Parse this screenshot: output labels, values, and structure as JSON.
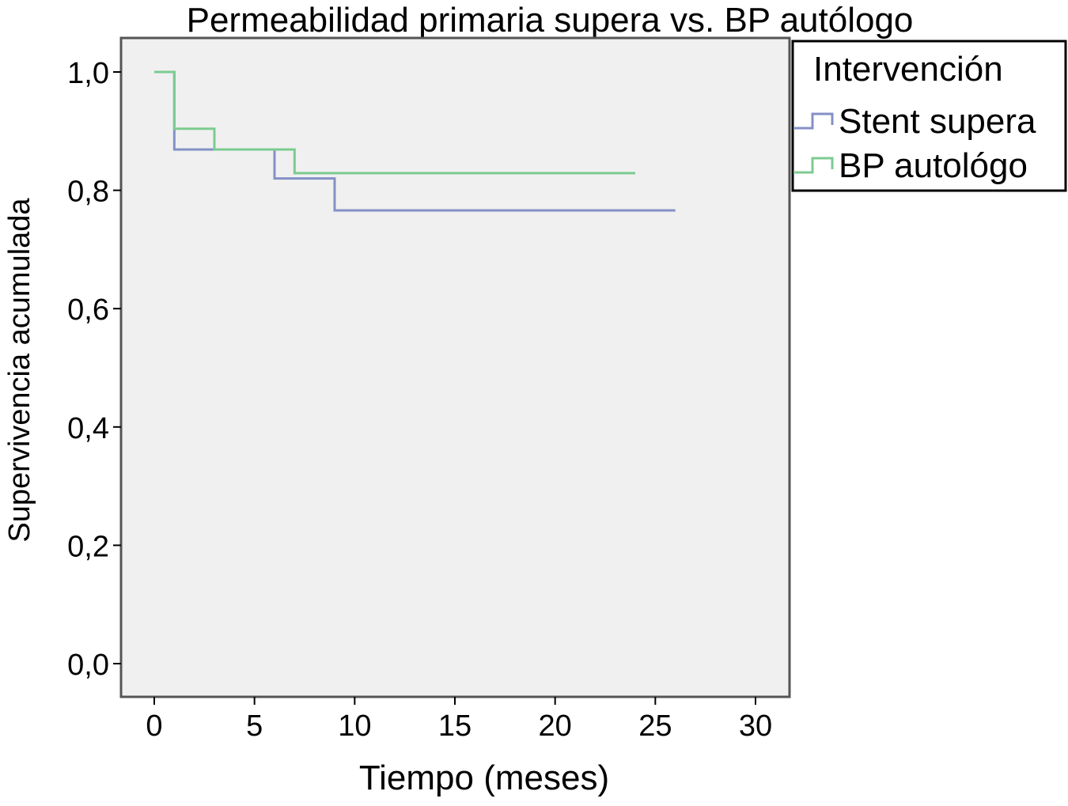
{
  "chart_data": {
    "type": "line",
    "step": true,
    "title": "Permeabilidad primaria supera vs. BP autólogo",
    "xlabel": "Tiempo (meses)",
    "ylabel": "Supervivencia acumulada",
    "xlim": [
      0,
      30
    ],
    "ylim": [
      0,
      1
    ],
    "xticks": [
      0,
      5,
      10,
      15,
      20,
      25,
      30
    ],
    "xtick_labels": [
      "0",
      "5",
      "10",
      "15",
      "20",
      "25",
      "30"
    ],
    "yticks": [
      0,
      0.2,
      0.4,
      0.6,
      0.8,
      1.0
    ],
    "ytick_labels": [
      "0,0",
      "0,2",
      "0,4",
      "0,6",
      "0,8",
      "1,0"
    ],
    "grid": false,
    "background": "#f0f0f0",
    "legend": {
      "title": "Intervención",
      "placement": "top-right-outside"
    },
    "series": [
      {
        "name": "Stent supera",
        "color": "#8490c6",
        "x": [
          0,
          1,
          6,
          9,
          26
        ],
        "y": [
          1.0,
          0.869,
          0.82,
          0.766,
          0.766
        ]
      },
      {
        "name": "BP autológo",
        "color": "#7ccb90",
        "x": [
          0,
          1,
          3,
          7,
          24
        ],
        "y": [
          1.0,
          0.904,
          0.869,
          0.829,
          0.829
        ]
      }
    ]
  }
}
